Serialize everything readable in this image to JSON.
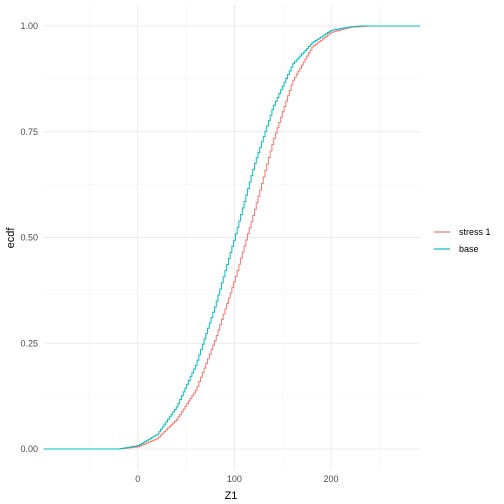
{
  "chart_data": {
    "type": "line",
    "step": true,
    "xlabel": "Z1",
    "ylabel": "ecdf",
    "xlim": [
      -97,
      292
    ],
    "ylim": [
      0,
      1
    ],
    "x_ticks": [
      0,
      100,
      200
    ],
    "x_tick_labels": [
      "0",
      "100",
      "200"
    ],
    "y_ticks": [
      0,
      0.25,
      0.5,
      0.75,
      1
    ],
    "y_tick_labels": [
      "0.00",
      "0.25",
      "0.50",
      "0.75",
      "1.00"
    ],
    "grid": true,
    "legend_position": "right",
    "series": [
      {
        "name": "stress 1",
        "color": "#F8766D",
        "points": [
          [
            -97,
            0
          ],
          [
            -20,
            0
          ],
          [
            0,
            0.005
          ],
          [
            20,
            0.025
          ],
          [
            40,
            0.07
          ],
          [
            60,
            0.14
          ],
          [
            80,
            0.26
          ],
          [
            100,
            0.4
          ],
          [
            110,
            0.48
          ],
          [
            120,
            0.56
          ],
          [
            140,
            0.73
          ],
          [
            160,
            0.87
          ],
          [
            180,
            0.95
          ],
          [
            200,
            0.985
          ],
          [
            220,
            0.997
          ],
          [
            240,
            1
          ],
          [
            292,
            1
          ]
        ]
      },
      {
        "name": "base",
        "color": "#00BFC4",
        "points": [
          [
            -97,
            0
          ],
          [
            -20,
            0
          ],
          [
            0,
            0.008
          ],
          [
            20,
            0.035
          ],
          [
            40,
            0.1
          ],
          [
            60,
            0.2
          ],
          [
            80,
            0.34
          ],
          [
            100,
            0.5
          ],
          [
            120,
            0.67
          ],
          [
            140,
            0.81
          ],
          [
            160,
            0.91
          ],
          [
            180,
            0.96
          ],
          [
            200,
            0.99
          ],
          [
            220,
            0.998
          ],
          [
            230,
            1
          ],
          [
            292,
            1
          ]
        ]
      }
    ]
  }
}
